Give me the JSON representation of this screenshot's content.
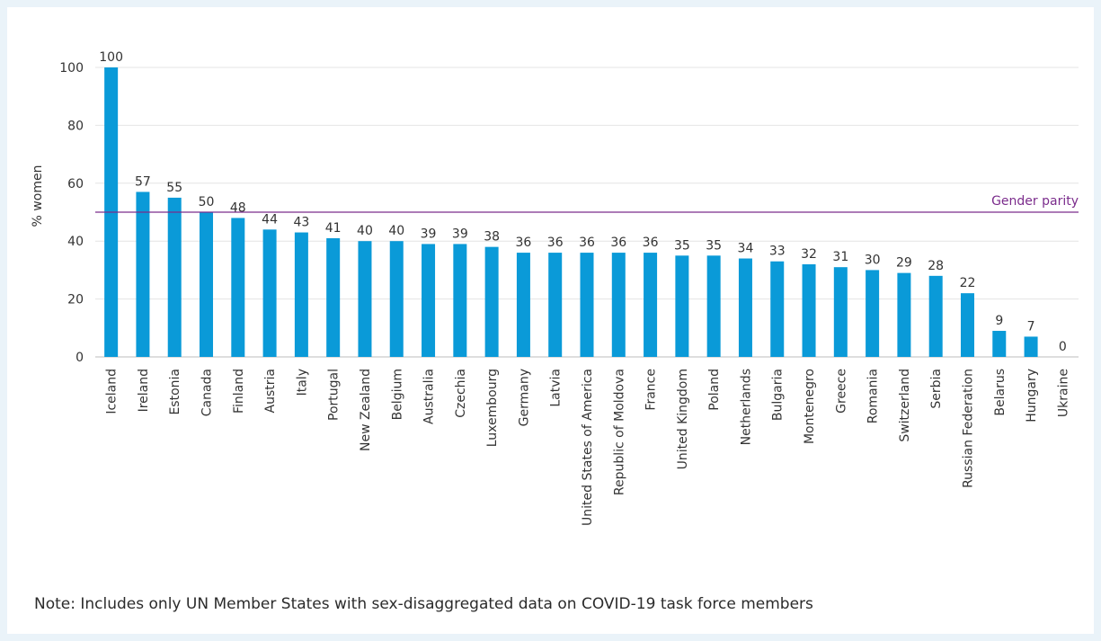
{
  "chart_data": {
    "type": "bar",
    "ylabel": "% women",
    "ylim": [
      0,
      100
    ],
    "yticks": [
      0,
      20,
      40,
      60,
      80,
      100
    ],
    "grid": true,
    "bar_color": "#0a9ad8",
    "categories": [
      "Iceland",
      "Ireland",
      "Estonia",
      "Canada",
      "Finland",
      "Austria",
      "Italy",
      "Portugal",
      "New Zealand",
      "Belgium",
      "Australia",
      "Czechia",
      "Luxembourg",
      "Germany",
      "Latvia",
      "United States of America",
      "Republic of Moldova",
      "France",
      "United Kingdom",
      "Poland",
      "Netherlands",
      "Bulgaria",
      "Montenegro",
      "Greece",
      "Romania",
      "Switzerland",
      "Serbia",
      "Russian Federation",
      "Belarus",
      "Hungary",
      "Ukraine"
    ],
    "values": [
      100,
      57,
      55,
      50,
      48,
      44,
      43,
      41,
      40,
      40,
      39,
      39,
      38,
      36,
      36,
      36,
      36,
      36,
      35,
      35,
      34,
      33,
      32,
      31,
      30,
      29,
      28,
      22,
      9,
      7,
      0
    ],
    "data_labels": [
      "100",
      "57",
      "55",
      "50",
      "48",
      "44",
      "43",
      "41",
      "40",
      "40",
      "39",
      "39",
      "38",
      "36",
      "36",
      "36",
      "36",
      "36",
      "35",
      "35",
      "34",
      "33",
      "32",
      "31",
      "30",
      "29",
      "28",
      "22",
      "9",
      "7",
      "0"
    ],
    "reference_line": {
      "value": 50,
      "label": "Gender parity",
      "color": "#7b2c8c"
    }
  },
  "note": "Note: Includes only UN Member States with sex-disaggregated data on COVID-19 task force members"
}
